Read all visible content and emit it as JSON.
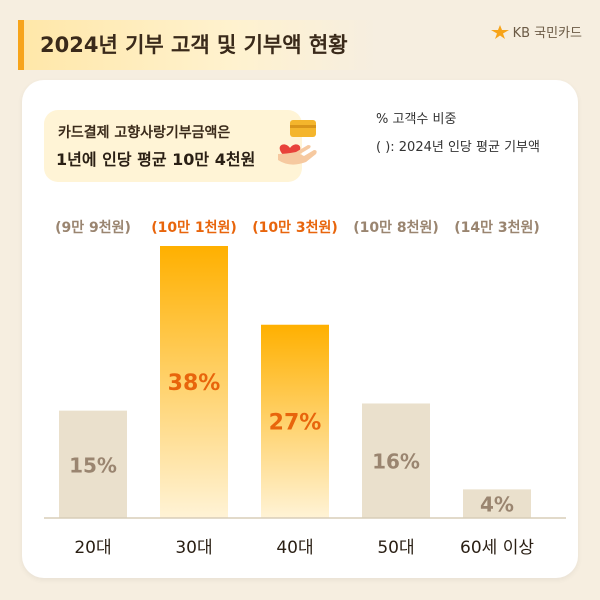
{
  "header": {
    "title": "2024년  기부 고객 및 기부액 현황",
    "logo_text": "KB 국민카드"
  },
  "callout": {
    "line1": "카드결제 고향사랑기부금액은",
    "line2": "1년에 인당 평균 10만 4천원"
  },
  "notes": {
    "share": "% 고객수 비중",
    "avg": "( ): 2024년 인당 평균 기부액"
  },
  "colors": {
    "accent": "#f7a41a",
    "highlight_text": "#e8650c",
    "muted_bar": "#eae0cc",
    "muted_text": "#9a8570"
  },
  "chart_data": {
    "type": "bar",
    "categories": [
      "20대",
      "30대",
      "40대",
      "50대",
      "60세 이상"
    ],
    "values": [
      15,
      38,
      27,
      16,
      4
    ],
    "value_labels": [
      "15%",
      "38%",
      "27%",
      "16%",
      "4%"
    ],
    "avg_donation_labels": [
      "(9만 9천원)",
      "(10만 1천원)",
      "(10만 3천원)",
      "(10만 8천원)",
      "(14만 3천원)"
    ],
    "highlighted": [
      false,
      true,
      true,
      false,
      false
    ],
    "ylim": [
      0,
      38
    ]
  }
}
